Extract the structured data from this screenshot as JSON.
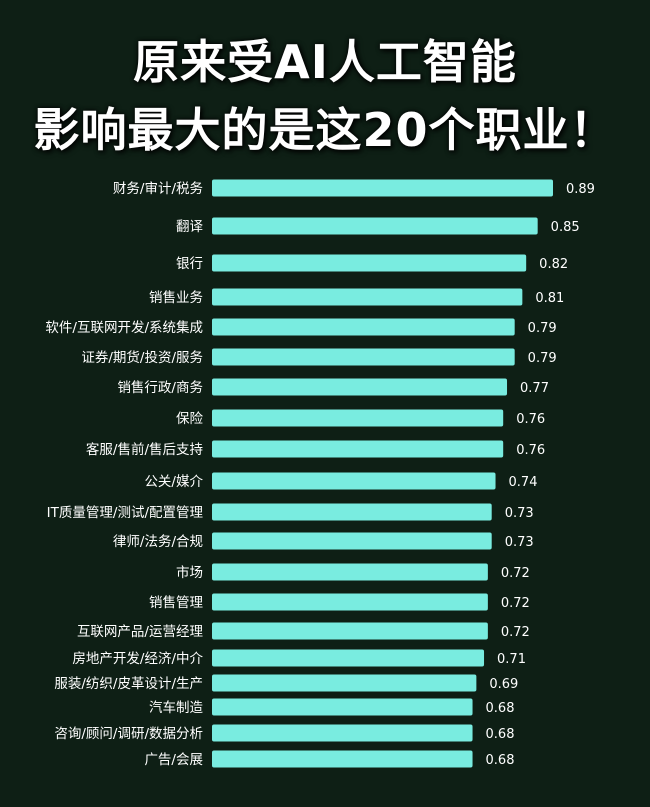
{
  "title": {
    "line1": "原来受AI人工智能",
    "line2": "影响最大的是这20个职业！"
  },
  "colors": {
    "background": "#0e1f15",
    "bar": "#79ece0",
    "text": "#ffffff"
  },
  "chart_data": {
    "type": "bar",
    "orientation": "horizontal",
    "categories": [
      "财务/审计/税务",
      "翻译",
      "银行",
      "销售业务",
      "软件/互联网开发/系统集成",
      "证券/期货/投资/服务",
      "销售行政/商务",
      "保险",
      "客服/售前/售后支持",
      "公关/媒介",
      "IT质量管理/测试/配置管理",
      "律师/法务/合规",
      "市场",
      "销售管理",
      "互联网产品/运营经理",
      "房地产开发/经济/中介",
      "服装/纺织/皮革设计/生产",
      "汽车制造",
      "咨询/顾问/调研/数据分析",
      "广告/会展"
    ],
    "values": [
      0.89,
      0.85,
      0.82,
      0.81,
      0.79,
      0.79,
      0.77,
      0.76,
      0.76,
      0.74,
      0.73,
      0.73,
      0.72,
      0.72,
      0.72,
      0.71,
      0.69,
      0.68,
      0.68,
      0.68
    ],
    "value_labels": [
      "0.89",
      "0.85",
      "0.82",
      "0.81",
      "0.79",
      "0.79",
      "0.77",
      "0.76",
      "0.76",
      "0.74",
      "0.73",
      "0.73",
      "0.72",
      "0.72",
      "0.72",
      "0.71",
      "0.69",
      "0.68",
      "0.68",
      "0.68"
    ],
    "xlim": [
      0,
      0.89
    ],
    "grid": false,
    "legend": "none"
  }
}
